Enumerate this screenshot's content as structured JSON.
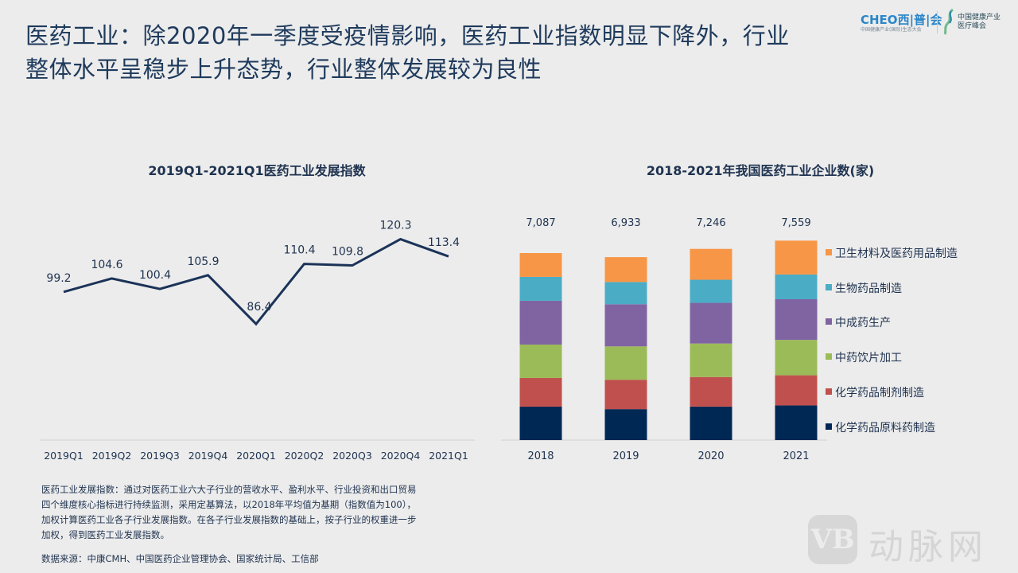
{
  "headline": {
    "line1": "医药工业：除2020年一季度受疫情影响，医药工业指数明显下降外，行业",
    "line2": "整体水平呈稳步上升态势，行业整体发展较为良性"
  },
  "logo": {
    "brand": "CHEO",
    "brand_suffix": "西|普|会",
    "brand_sub": "中国健康产业(国际)生态大会",
    "partner_line1": "中国健康产业",
    "partner_line2": "医疗峰会",
    "leaf_icon": "leaf-swirl-icon"
  },
  "chart_data": [
    {
      "type": "line",
      "title": "2019Q1-2021Q1医药工业发展指数",
      "categories": [
        "2019Q1",
        "2019Q2",
        "2019Q3",
        "2019Q4",
        "2020Q1",
        "2020Q2",
        "2020Q3",
        "2020Q4",
        "2021Q1"
      ],
      "values": [
        99.2,
        104.6,
        100.4,
        105.9,
        86.4,
        110.4,
        109.8,
        120.3,
        113.4
      ],
      "data_labels": [
        "99.2",
        "104.6",
        "100.4",
        "105.9",
        "86.4",
        "110.4",
        "109.8",
        "120.3",
        "113.4"
      ],
      "xlabel": "",
      "ylabel": "",
      "ylim": [
        40,
        130
      ],
      "grid": false,
      "line_color": "#1b3358"
    },
    {
      "type": "bar",
      "stacked": true,
      "title": "2018-2021年我国医药工业企业数(家)",
      "categories": [
        "2018",
        "2019",
        "2020",
        "2021"
      ],
      "totals": [
        7087,
        6933,
        7246,
        7559
      ],
      "total_labels": [
        "7,087",
        "6,933",
        "7,246",
        "7,559"
      ],
      "series": [
        {
          "name": "化学药品原料药制造",
          "color": "#002855",
          "values": [
            1267,
            1172,
            1270,
            1313
          ]
        },
        {
          "name": "化学药品制剂制造",
          "color": "#c0504d",
          "values": [
            1086,
            1114,
            1120,
            1143
          ]
        },
        {
          "name": "中药饮片加工",
          "color": "#9bbb59",
          "values": [
            1267,
            1265,
            1270,
            1341
          ]
        },
        {
          "name": "中成药生产",
          "color": "#8064a2",
          "values": [
            1659,
            1597,
            1541,
            1541
          ]
        },
        {
          "name": "生物药品制造",
          "color": "#4bacc6",
          "values": [
            905,
            843,
            875,
            938
          ]
        },
        {
          "name": "卫生材料及医药用品制造",
          "color": "#f79646",
          "values": [
            903,
            942,
            1170,
            1283
          ]
        }
      ],
      "legend_position": "right",
      "grid": false,
      "ylim": [
        0,
        7600
      ]
    }
  ],
  "note": {
    "lines": [
      "医药工业发展指数：通过对医药工业六大子行业的营收水平、盈利水平、行业投资和出口贸易",
      "四个维度核心指标进行持续监测，采用定基算法，以2018年平均值为基期（指数值为100），",
      "加权计算医药工业各子行业发展指数。在各子行业发展指数的基础上，按子行业的权重进一步",
      "加权，得到医药工业发展指数。"
    ]
  },
  "source": "数据来源：中康CMH、中国医药企业管理协会、国家统计局、工信部",
  "watermark": {
    "badge": "VB",
    "text": "动脉网"
  }
}
